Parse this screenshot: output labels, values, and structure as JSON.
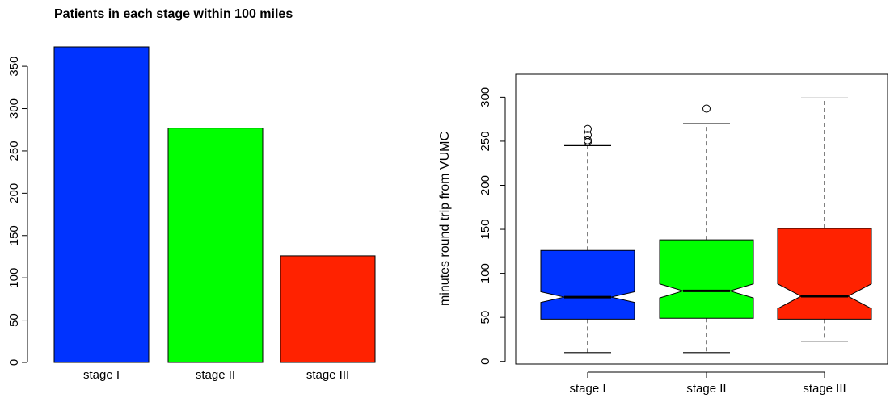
{
  "chart_data": [
    {
      "type": "bar",
      "title": "Patients in each stage within 100 miles",
      "categories": [
        "stage I",
        "stage II",
        "stage III"
      ],
      "values": [
        373,
        277,
        126
      ],
      "colors": [
        "#0033FF",
        "#00FF00",
        "#FF2200"
      ],
      "xlabel": "",
      "ylabel": "",
      "yticks": [
        0,
        50,
        100,
        150,
        200,
        250,
        300,
        350
      ],
      "ylim": [
        0,
        373
      ],
      "grid": false
    },
    {
      "type": "box",
      "notched": true,
      "title": "",
      "categories": [
        "stage I",
        "stage II",
        "stage III"
      ],
      "ylabel": "minutes round trip from VUMC",
      "xlabel": "",
      "yticks": [
        0,
        50,
        100,
        150,
        200,
        250,
        300
      ],
      "ylim": [
        -3,
        326
      ],
      "grid": false,
      "colors": [
        "#0033FF",
        "#00FF00",
        "#FF2200"
      ],
      "boxes": [
        {
          "name": "stage I",
          "whisker_low": 10,
          "q1": 48,
          "median": 73,
          "q3": 126,
          "whisker_high": 245,
          "notch_low": 67,
          "notch_high": 79,
          "outliers": [
            249,
            251,
            257,
            264
          ]
        },
        {
          "name": "stage II",
          "whisker_low": 10,
          "q1": 49,
          "median": 80,
          "q3": 138,
          "whisker_high": 270,
          "notch_low": 72,
          "notch_high": 88,
          "outliers": [
            287
          ]
        },
        {
          "name": "stage III",
          "whisker_low": 23,
          "q1": 48,
          "median": 74,
          "q3": 151,
          "whisker_high": 299,
          "notch_low": 60,
          "notch_high": 88,
          "outliers": []
        }
      ]
    }
  ]
}
